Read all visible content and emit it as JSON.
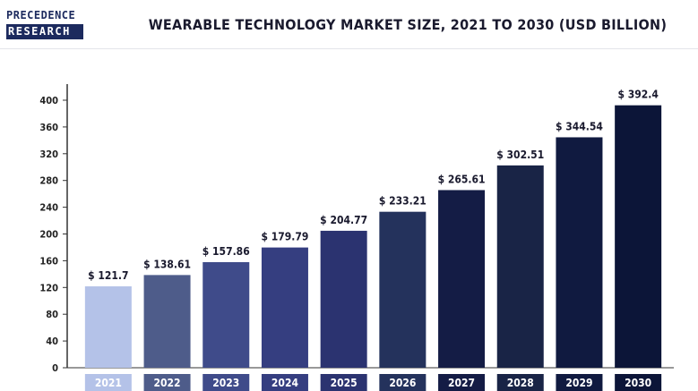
{
  "brand": {
    "line1": "PRECEDENCE",
    "line2": "RESEARCH"
  },
  "chart_data": {
    "type": "bar",
    "title": "WEARABLE TECHNOLOGY MARKET SIZE, 2021 TO 2030 (USD BILLION)",
    "xlabel": "",
    "ylabel": "",
    "categories": [
      "2021",
      "2022",
      "2023",
      "2024",
      "2025",
      "2026",
      "2027",
      "2028",
      "2029",
      "2030"
    ],
    "values": [
      121.7,
      138.61,
      157.86,
      179.79,
      204.77,
      233.21,
      265.61,
      302.51,
      344.54,
      392.4
    ],
    "data_labels": [
      "$ 121.7",
      "$ 138.61",
      "$ 157.86",
      "$ 179.79",
      "$ 204.77",
      "$ 233.21",
      "$ 265.61",
      "$ 302.51",
      "$ 344.54",
      "$ 392.4"
    ],
    "ylim": [
      0,
      400
    ],
    "yticks": [
      0,
      40,
      80,
      120,
      160,
      200,
      240,
      280,
      320,
      360,
      400
    ],
    "grid": false,
    "legend": "none",
    "colors": [
      "#b4c2e8",
      "#4e5c8a",
      "#3f4b8a",
      "#353e80",
      "#2b3370",
      "#24325c",
      "#141c45",
      "#192446",
      "#101a40",
      "#0c1538"
    ]
  }
}
